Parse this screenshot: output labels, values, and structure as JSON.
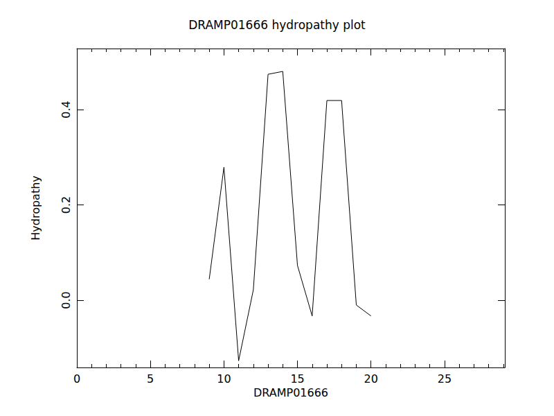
{
  "chart_data": {
    "type": "line",
    "title": "DRAMP01666 hydropathy plot",
    "x_label": "DRAMP01666",
    "y_label": "Hydropathy",
    "x": [
      9,
      10,
      11,
      12,
      13,
      14,
      15,
      16,
      17,
      18,
      19,
      20
    ],
    "values": [
      0.044,
      0.279,
      -0.127,
      0.022,
      0.474,
      0.48,
      0.073,
      -0.033,
      0.419,
      0.419,
      -0.01,
      -0.033
    ],
    "color": "#000000",
    "xlim": [
      0,
      29.1
    ],
    "xticks": [
      0,
      5,
      10,
      15,
      20,
      25
    ],
    "ylim": [
      -0.141,
      0.528
    ],
    "yticks": [
      {
        "value": 0,
        "label": "0.0"
      },
      0.2,
      0.4
    ],
    "grid": false
  }
}
